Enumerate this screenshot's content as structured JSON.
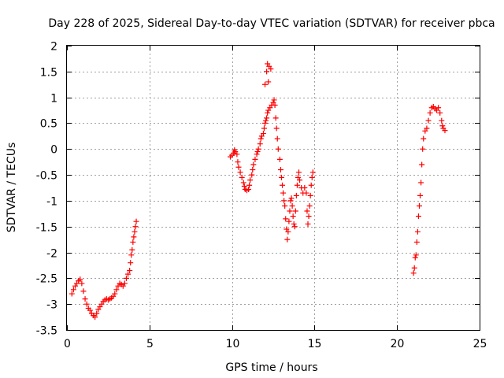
{
  "chart_data": {
    "type": "scatter",
    "title": "Day 228 of 2025, Sidereal Day-to-day VTEC variation (SDTVAR) for receiver pbca",
    "xlabel": "GPS time / hours",
    "ylabel": "SDTVAR / TECUs",
    "xlim": [
      0,
      25
    ],
    "ylim": [
      -3.5,
      2
    ],
    "xticks": [
      "0",
      "5",
      "10",
      "15",
      "20",
      "25"
    ],
    "yticks": [
      "2",
      "1.5",
      "1",
      "0.5",
      "0",
      "-0.5",
      "-1",
      "-1.5",
      "-2",
      "-2.5",
      "-3",
      "-3.5"
    ],
    "marker": "+",
    "grid": true,
    "series": [
      {
        "name": "SDTVAR",
        "color": "#ff0000",
        "points": [
          [
            0.3,
            -2.8
          ],
          [
            0.4,
            -2.72
          ],
          [
            0.5,
            -2.65
          ],
          [
            0.6,
            -2.6
          ],
          [
            0.7,
            -2.55
          ],
          [
            0.8,
            -2.52
          ],
          [
            0.9,
            -2.6
          ],
          [
            1.0,
            -2.75
          ],
          [
            1.1,
            -2.9
          ],
          [
            1.2,
            -3.0
          ],
          [
            1.3,
            -3.08
          ],
          [
            1.4,
            -3.12
          ],
          [
            1.5,
            -3.18
          ],
          [
            1.6,
            -3.22
          ],
          [
            1.7,
            -3.25
          ],
          [
            1.8,
            -3.18
          ],
          [
            1.9,
            -3.1
          ],
          [
            2.0,
            -3.05
          ],
          [
            2.1,
            -3.0
          ],
          [
            2.2,
            -2.95
          ],
          [
            2.3,
            -2.92
          ],
          [
            2.4,
            -2.9
          ],
          [
            2.5,
            -2.92
          ],
          [
            2.6,
            -2.9
          ],
          [
            2.7,
            -2.88
          ],
          [
            2.8,
            -2.85
          ],
          [
            2.9,
            -2.8
          ],
          [
            3.0,
            -2.72
          ],
          [
            3.1,
            -2.65
          ],
          [
            3.2,
            -2.6
          ],
          [
            3.3,
            -2.62
          ],
          [
            3.4,
            -2.65
          ],
          [
            3.5,
            -2.6
          ],
          [
            3.6,
            -2.5
          ],
          [
            3.7,
            -2.42
          ],
          [
            3.8,
            -2.35
          ],
          [
            3.85,
            -2.2
          ],
          [
            3.9,
            -2.05
          ],
          [
            3.95,
            -1.95
          ],
          [
            4.0,
            -1.8
          ],
          [
            4.05,
            -1.7
          ],
          [
            4.1,
            -1.6
          ],
          [
            4.15,
            -1.5
          ],
          [
            4.2,
            -1.4
          ],
          [
            9.9,
            -0.15
          ],
          [
            10.0,
            -0.12
          ],
          [
            10.1,
            -0.08
          ],
          [
            10.15,
            -0.02
          ],
          [
            10.2,
            -0.05
          ],
          [
            10.3,
            -0.1
          ],
          [
            10.35,
            -0.25
          ],
          [
            10.4,
            -0.35
          ],
          [
            10.5,
            -0.45
          ],
          [
            10.6,
            -0.55
          ],
          [
            10.7,
            -0.65
          ],
          [
            10.75,
            -0.72
          ],
          [
            10.8,
            -0.78
          ],
          [
            10.9,
            -0.8
          ],
          [
            11.0,
            -0.78
          ],
          [
            11.05,
            -0.7
          ],
          [
            11.1,
            -0.6
          ],
          [
            11.2,
            -0.5
          ],
          [
            11.25,
            -0.4
          ],
          [
            11.3,
            -0.3
          ],
          [
            11.4,
            -0.2
          ],
          [
            11.5,
            -0.1
          ],
          [
            11.55,
            -0.05
          ],
          [
            11.6,
            0.0
          ],
          [
            11.7,
            0.1
          ],
          [
            11.75,
            0.2
          ],
          [
            11.8,
            0.25
          ],
          [
            11.9,
            0.3
          ],
          [
            11.95,
            0.4
          ],
          [
            12.0,
            0.5
          ],
          [
            12.05,
            0.55
          ],
          [
            12.1,
            0.6
          ],
          [
            12.15,
            0.7
          ],
          [
            12.2,
            0.75
          ],
          [
            12.3,
            0.8
          ],
          [
            12.4,
            0.85
          ],
          [
            12.5,
            0.9
          ],
          [
            12.55,
            0.95
          ],
          [
            12.6,
            0.85
          ],
          [
            12.65,
            0.6
          ],
          [
            12.7,
            0.4
          ],
          [
            12.75,
            0.2
          ],
          [
            12.8,
            0.0
          ],
          [
            12.9,
            -0.2
          ],
          [
            12.95,
            -0.4
          ],
          [
            13.0,
            -0.55
          ],
          [
            13.05,
            -0.7
          ],
          [
            13.1,
            -0.85
          ],
          [
            13.15,
            -1.0
          ],
          [
            13.2,
            -1.1
          ],
          [
            13.25,
            -1.35
          ],
          [
            13.3,
            -1.55
          ],
          [
            13.35,
            -1.75
          ],
          [
            13.4,
            -1.6
          ],
          [
            13.45,
            -1.4
          ],
          [
            13.5,
            -1.2
          ],
          [
            13.55,
            -1.0
          ],
          [
            13.6,
            -0.95
          ],
          [
            13.65,
            -1.1
          ],
          [
            13.7,
            -1.3
          ],
          [
            13.75,
            -1.45
          ],
          [
            13.8,
            -1.5
          ],
          [
            13.85,
            -1.2
          ],
          [
            13.9,
            -0.9
          ],
          [
            13.95,
            -0.7
          ],
          [
            14.0,
            -0.55
          ],
          [
            14.05,
            -0.45
          ],
          [
            14.1,
            -0.6
          ],
          [
            14.2,
            -0.75
          ],
          [
            14.3,
            -0.85
          ],
          [
            14.4,
            -0.75
          ],
          [
            14.5,
            -0.85
          ],
          [
            14.55,
            -1.2
          ],
          [
            14.6,
            -1.45
          ],
          [
            14.65,
            -1.3
          ],
          [
            14.7,
            -1.1
          ],
          [
            14.75,
            -0.9
          ],
          [
            14.8,
            -0.7
          ],
          [
            14.85,
            -0.55
          ],
          [
            14.9,
            -0.45
          ],
          [
            12.0,
            1.25
          ],
          [
            12.1,
            1.5
          ],
          [
            12.15,
            1.65
          ],
          [
            12.25,
            1.6
          ],
          [
            12.35,
            1.55
          ],
          [
            12.2,
            1.3
          ],
          [
            21.0,
            -2.4
          ],
          [
            21.05,
            -2.3
          ],
          [
            21.1,
            -2.1
          ],
          [
            21.15,
            -2.05
          ],
          [
            21.2,
            -1.8
          ],
          [
            21.25,
            -1.6
          ],
          [
            21.3,
            -1.3
          ],
          [
            21.35,
            -1.1
          ],
          [
            21.4,
            -0.9
          ],
          [
            21.45,
            -0.65
          ],
          [
            21.5,
            -0.3
          ],
          [
            21.55,
            0.0
          ],
          [
            21.6,
            0.2
          ],
          [
            21.7,
            0.35
          ],
          [
            21.8,
            0.4
          ],
          [
            21.9,
            0.55
          ],
          [
            22.0,
            0.7
          ],
          [
            22.1,
            0.8
          ],
          [
            22.2,
            0.82
          ],
          [
            22.3,
            0.78
          ],
          [
            22.4,
            0.75
          ],
          [
            22.5,
            0.8
          ],
          [
            22.6,
            0.7
          ],
          [
            22.7,
            0.55
          ],
          [
            22.75,
            0.45
          ],
          [
            22.8,
            0.4
          ],
          [
            22.9,
            0.36
          ]
        ]
      }
    ]
  }
}
